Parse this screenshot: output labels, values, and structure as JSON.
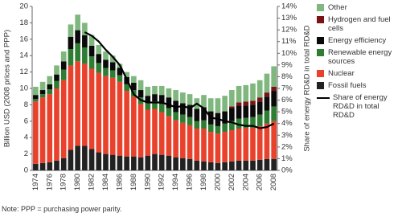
{
  "chart_data": {
    "type": "bar",
    "stacked": true,
    "y_label": "Billion USD (2008 prices and PPP)",
    "y2_label": "Share of energy RD&D in total RD&D",
    "note": "Note: PPP = purchasing power parity.",
    "categories": [
      "1974",
      null,
      "1976",
      null,
      "1978",
      null,
      "1980",
      null,
      "1982",
      null,
      "1984",
      null,
      "1986",
      null,
      "1988",
      null,
      "1990",
      null,
      "1992",
      null,
      "1994",
      null,
      "1996",
      null,
      "1998",
      null,
      "2000",
      null,
      "2002",
      null,
      "2004",
      null,
      "2006",
      null,
      "2008"
    ],
    "ylim": [
      0,
      20
    ],
    "yticks": [
      0,
      2,
      4,
      6,
      8,
      10,
      12,
      14,
      16,
      18,
      20
    ],
    "y2lim": [
      0,
      14
    ],
    "y2ticks": [
      {
        "value": 0,
        "label": "0%"
      },
      {
        "value": 1,
        "label": "1%"
      },
      {
        "value": 2,
        "label": "2%"
      },
      {
        "value": 3,
        "label": "3%"
      },
      {
        "value": 4,
        "label": "4%"
      },
      {
        "value": 5,
        "label": "5%"
      },
      {
        "value": 6,
        "label": "6%"
      },
      {
        "value": 7,
        "label": "7%"
      },
      {
        "value": 8,
        "label": "8%"
      },
      {
        "value": 9,
        "label": "9%"
      },
      {
        "value": 10,
        "label": "10%"
      },
      {
        "value": 11,
        "label": "11%"
      },
      {
        "value": 12,
        "label": "12%"
      },
      {
        "value": 13,
        "label": "13%"
      },
      {
        "value": 14,
        "label": "14%"
      }
    ],
    "series": [
      {
        "name": "Fossil fuels",
        "color": "#222222",
        "values": [
          0.8,
          0.9,
          1.0,
          1.2,
          1.5,
          2.5,
          3.0,
          3.0,
          2.6,
          2.2,
          2.0,
          1.9,
          1.8,
          1.7,
          1.7,
          1.6,
          1.8,
          2.0,
          1.9,
          1.8,
          1.6,
          1.5,
          1.4,
          1.2,
          1.1,
          1.0,
          0.9,
          1.0,
          1.1,
          1.2,
          1.2,
          1.2,
          1.3,
          1.4,
          1.4
        ]
      },
      {
        "name": "Nuclear",
        "color": "#e8412c",
        "values": [
          7.6,
          8.0,
          8.3,
          8.8,
          9.5,
          10.3,
          10.3,
          10.0,
          9.8,
          9.7,
          9.5,
          9.4,
          9.0,
          8.0,
          7.3,
          6.5,
          5.6,
          5.5,
          5.2,
          4.8,
          4.5,
          4.3,
          4.1,
          3.9,
          4.0,
          3.7,
          3.6,
          3.7,
          3.8,
          3.9,
          4.0,
          4.0,
          4.1,
          4.3,
          4.6
        ]
      },
      {
        "name": "Renewable energy sources",
        "color": "#2e7d32",
        "values": [
          0.3,
          0.4,
          0.6,
          0.9,
          1.3,
          2.0,
          2.2,
          2.0,
          1.5,
          1.2,
          1.0,
          0.9,
          0.8,
          0.8,
          0.8,
          0.8,
          0.8,
          0.9,
          1.0,
          1.0,
          1.0,
          1.0,
          1.0,
          0.9,
          1.0,
          0.9,
          0.9,
          1.0,
          1.1,
          1.2,
          1.2,
          1.3,
          1.4,
          1.6,
          1.8
        ]
      },
      {
        "name": "Energy efficiency",
        "color": "#0a0a0a",
        "values": [
          0.5,
          0.5,
          0.6,
          0.8,
          1.0,
          1.5,
          1.6,
          1.5,
          1.3,
          1.1,
          1.0,
          1.0,
          0.9,
          0.9,
          0.9,
          0.9,
          0.9,
          0.9,
          1.1,
          1.3,
          1.4,
          1.4,
          1.5,
          1.5,
          1.6,
          1.6,
          1.6,
          1.5,
          1.6,
          1.6,
          1.5,
          1.5,
          1.6,
          1.7,
          1.9
        ]
      },
      {
        "name": "Hydrogen and fuel cells",
        "color": "#7a1414",
        "values": [
          0,
          0,
          0,
          0,
          0,
          0,
          0,
          0,
          0,
          0,
          0,
          0,
          0,
          0,
          0,
          0,
          0,
          0,
          0,
          0,
          0,
          0,
          0,
          0,
          0,
          0,
          0,
          0,
          0.2,
          0.4,
          0.5,
          0.5,
          0.5,
          0.5,
          0.5
        ]
      },
      {
        "name": "Other",
        "color": "#7fb77e",
        "values": [
          1.0,
          1.0,
          1.0,
          1.1,
          1.2,
          1.5,
          1.9,
          1.5,
          1.3,
          1.1,
          1.0,
          0.8,
          0.5,
          0.6,
          0.8,
          1.2,
          1.1,
          1.0,
          1.1,
          1.1,
          1.3,
          1.3,
          1.3,
          1.3,
          1.5,
          1.6,
          1.8,
          1.9,
          2.0,
          2.0,
          2.0,
          2.1,
          2.1,
          2.3,
          2.5
        ]
      },
      {
        "name": "Share of energy RD&D in total RD&D",
        "color": "#000000",
        "type": "line",
        "axis": "y2",
        "values": [
          null,
          null,
          null,
          null,
          null,
          null,
          null,
          11.8,
          11.5,
          11.0,
          10.3,
          9.7,
          9.0,
          7.8,
          6.5,
          6.0,
          5.8,
          5.8,
          5.8,
          5.6,
          5.4,
          5.5,
          5.3,
          5.7,
          5.3,
          4.5,
          4.4,
          4.2,
          4.1,
          3.9,
          3.8,
          3.8,
          3.6,
          3.7,
          4.0
        ]
      }
    ]
  }
}
